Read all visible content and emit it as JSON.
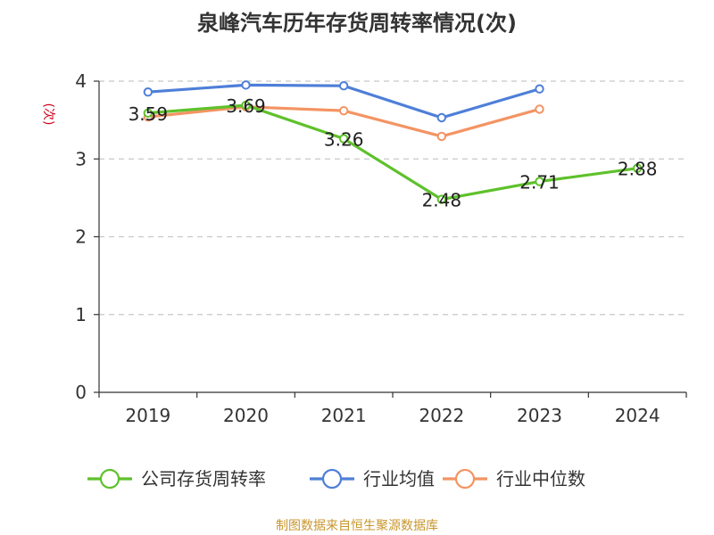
{
  "chart_data": {
    "type": "line",
    "title": "泉峰汽车历年存货周转率情况(次)",
    "ylabel": "(次)",
    "xlabel": "",
    "categories": [
      "2019",
      "2020",
      "2021",
      "2022",
      "2023",
      "2024"
    ],
    "ylim": [
      0,
      4
    ],
    "yticks": [
      "0",
      "1",
      "2",
      "3",
      "4"
    ],
    "grid": true,
    "legend_position": "bottom",
    "series": [
      {
        "name": "公司存货周转率",
        "color": "#5ec12b",
        "values": [
          3.59,
          3.69,
          3.26,
          2.48,
          2.71,
          2.88
        ],
        "labels": [
          "3.59",
          "3.69",
          "3.26",
          "2.48",
          "2.71",
          "2.88"
        ]
      },
      {
        "name": "行业均值",
        "color": "#4e7fd8",
        "values": [
          3.86,
          3.95,
          3.94,
          3.53,
          3.9,
          null
        ]
      },
      {
        "name": "行业中位数",
        "color": "#f39463",
        "values": [
          3.54,
          3.67,
          3.62,
          3.29,
          3.64,
          null
        ]
      }
    ],
    "source": "制图数据来自恒生聚源数据库"
  }
}
